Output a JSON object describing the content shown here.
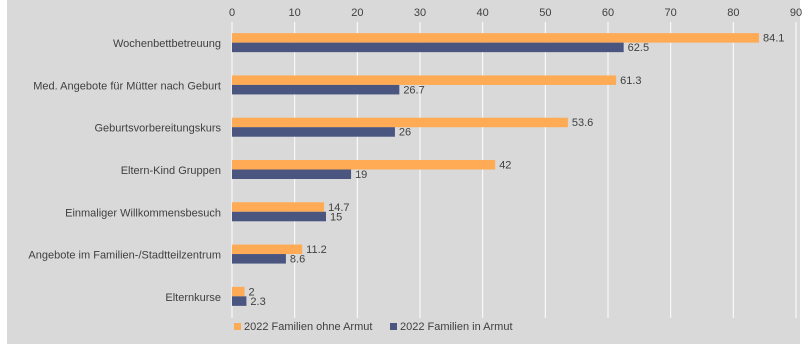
{
  "chart_data": {
    "type": "bar",
    "orientation": "horizontal",
    "categories": [
      "Wochenbettbetreuung",
      "Med. Angebote für Mütter nach Geburt",
      "Geburtsvorbereitungskurs",
      "Eltern-Kind Gruppen",
      "Einmaliger Willkommensbesuch",
      "Angebote im Familien-/Stadtteilzentrum",
      "Elternkurse"
    ],
    "series": [
      {
        "name": "2022 Familien ohne Armut",
        "color": "#FFAA55",
        "values": [
          84.1,
          61.3,
          53.6,
          42,
          14.7,
          11.2,
          2
        ],
        "labels": [
          "84.1",
          "61.3",
          "53.6",
          "42",
          "14.7",
          "11.2",
          "2"
        ]
      },
      {
        "name": "2022 Familien in Armut",
        "color": "#4A5580",
        "values": [
          62.5,
          26.7,
          26,
          19,
          15,
          8.6,
          2.3
        ],
        "labels": [
          "62.5",
          "26.7",
          "26",
          "19",
          "15",
          "8.6",
          "2.3"
        ]
      }
    ],
    "xlim": [
      0,
      90
    ],
    "xticks": [
      0,
      10,
      20,
      30,
      40,
      50,
      60,
      70,
      80,
      90
    ],
    "x_axis_position": "top",
    "grid": true,
    "legend": "bottom",
    "background": "#D9D9D9",
    "gridline_color": "#FFFFFF"
  }
}
